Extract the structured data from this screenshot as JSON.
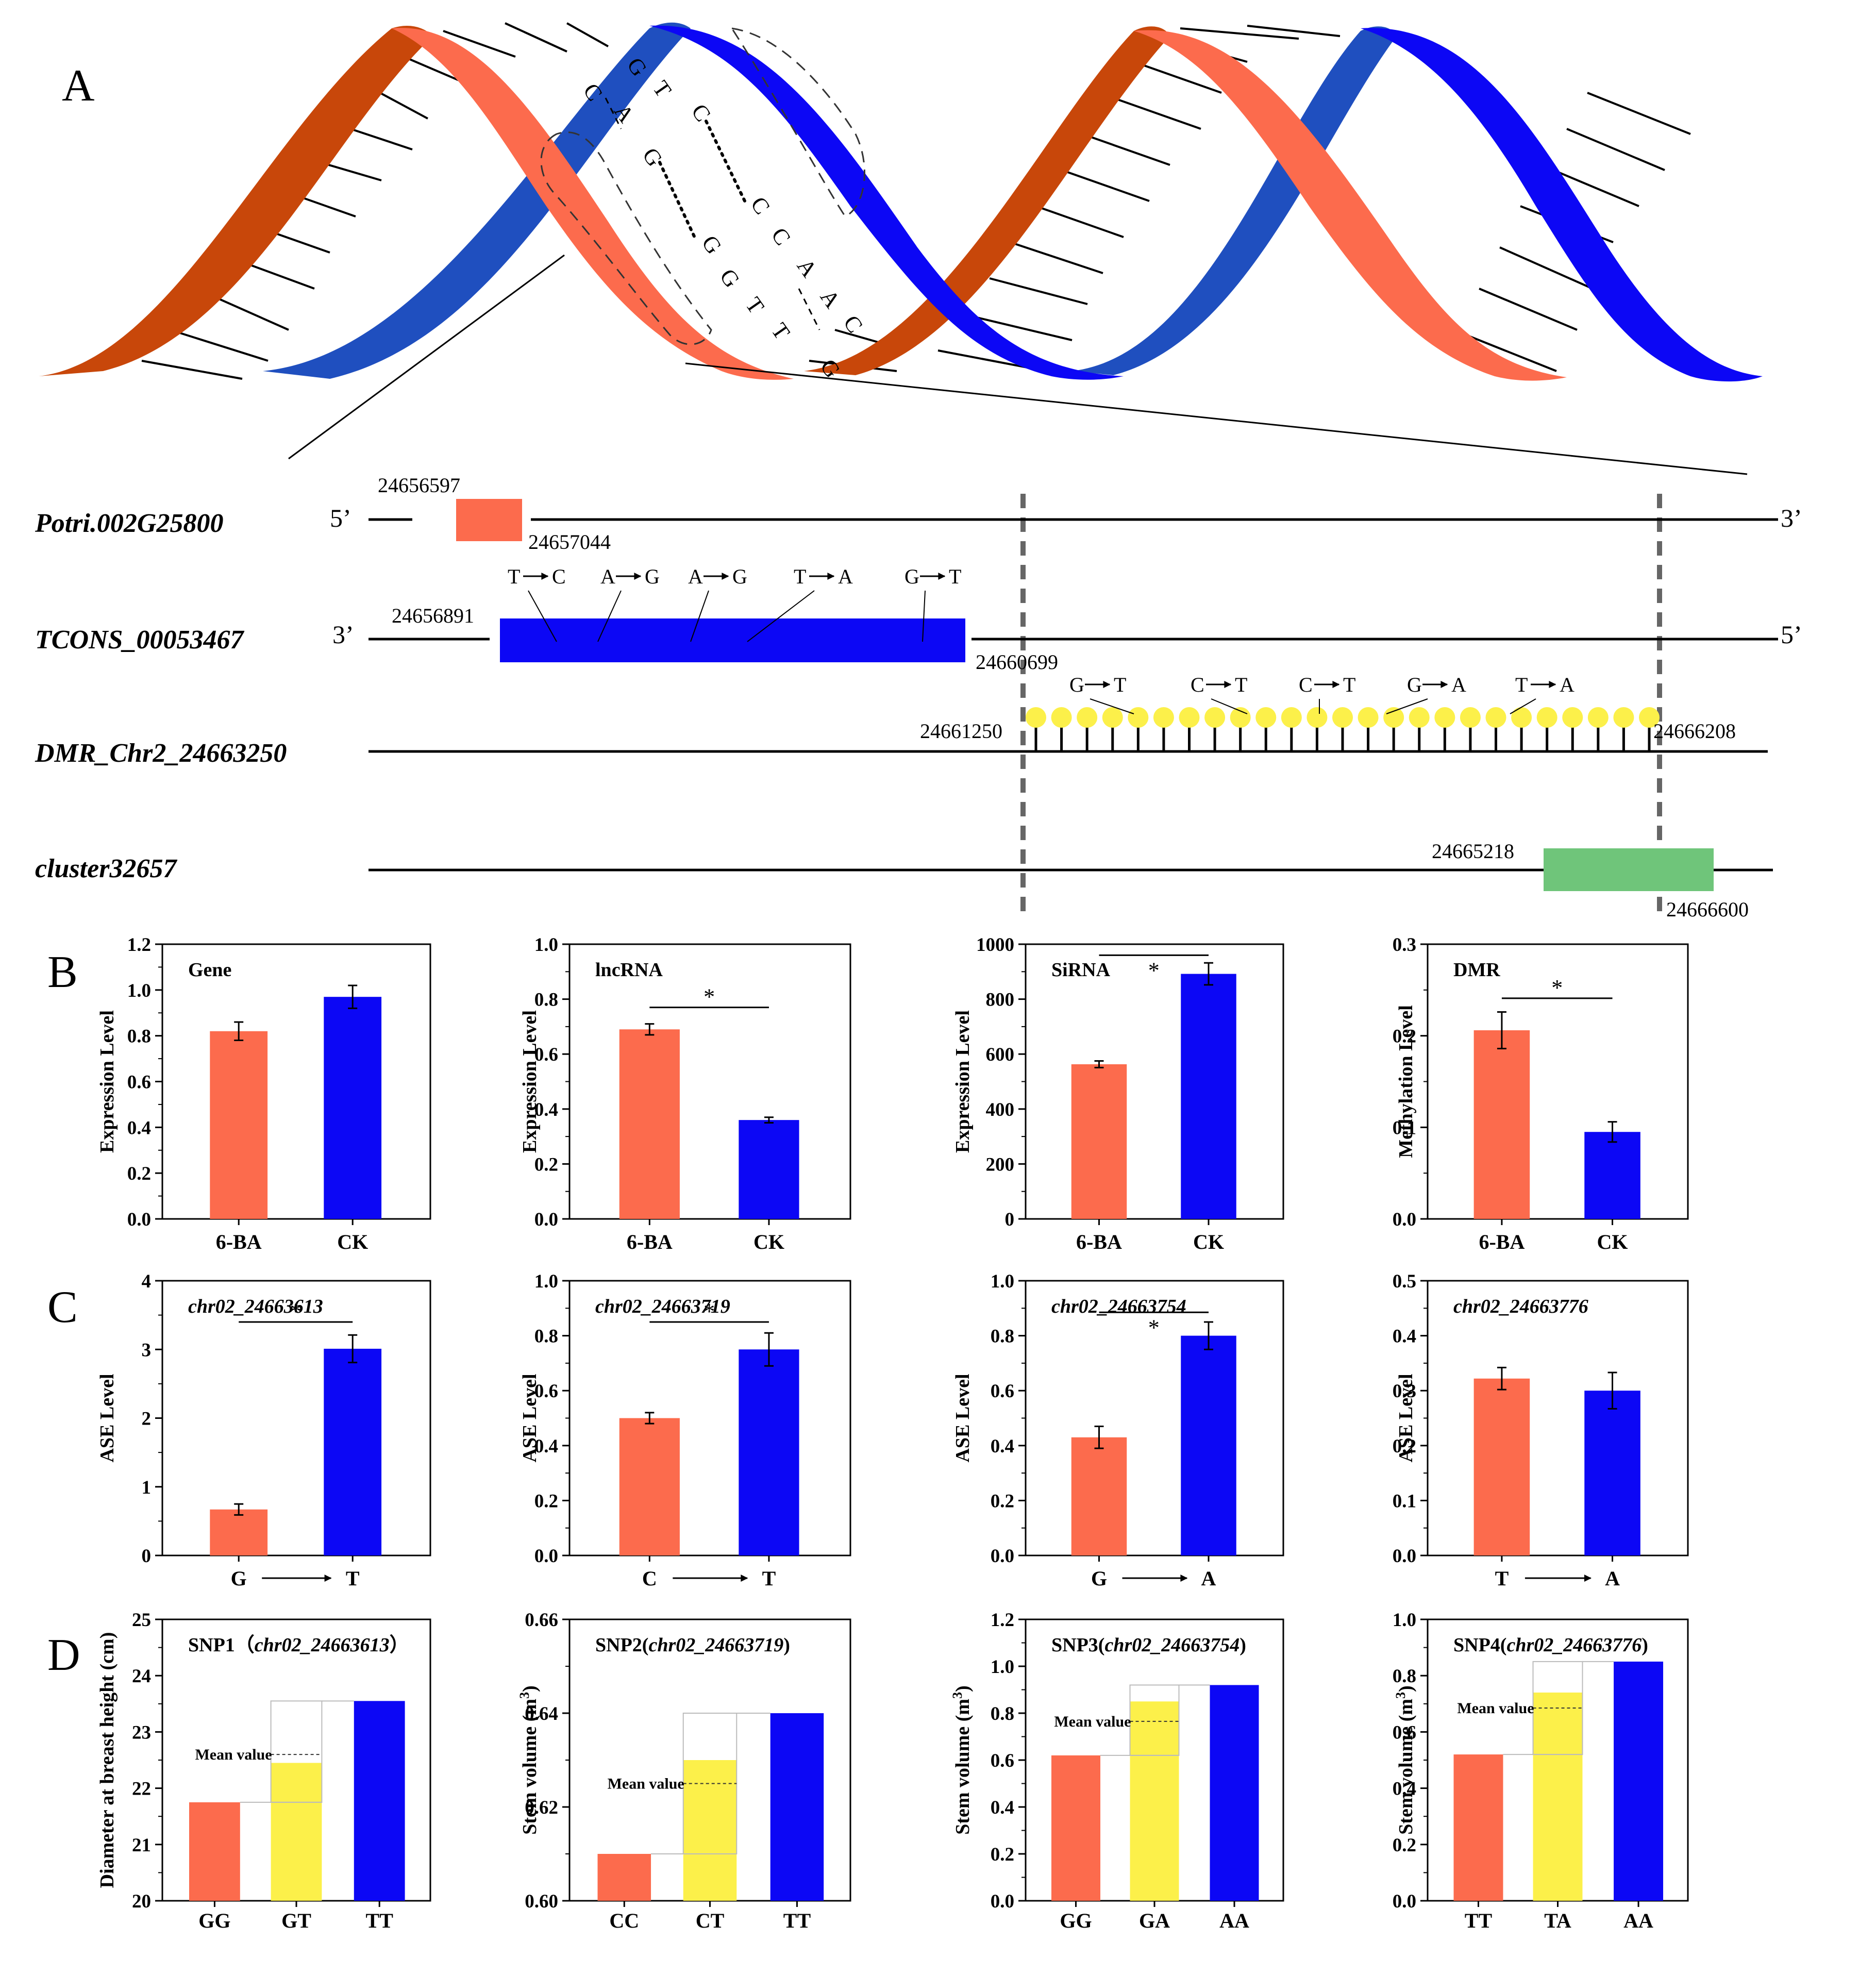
{
  "colors": {
    "salmon": "#FC6B4D",
    "blue": "#0C07F5",
    "yellow": "#FCF04A",
    "green": "#6FC57A",
    "rust": "#C8470A",
    "strandBlueDark": "#1F4FBF"
  },
  "panelA": {
    "letter": "A",
    "helix_bases": {
      "top_strand": [
        "G",
        "T",
        "C",
        "C",
        "C",
        "A",
        "A",
        "C"
      ],
      "bottom_strand": [
        "C",
        "A",
        "G",
        "G",
        "G",
        "T",
        "T",
        "G"
      ]
    },
    "tracks": [
      {
        "name": "Potri.002G25800",
        "left_end": "5’",
        "right_end": "3’",
        "start": "24656597",
        "end": "24657044"
      },
      {
        "name": "TCONS_00053467",
        "left_end": "3’",
        "right_end": "5’",
        "start": "24656891",
        "end": "24660699",
        "mutations": [
          {
            "from": "T",
            "to": "C"
          },
          {
            "from": "A",
            "to": "G"
          },
          {
            "from": "A",
            "to": "G"
          },
          {
            "from": "T",
            "to": "A"
          },
          {
            "from": "G",
            "to": "T"
          }
        ]
      },
      {
        "name": "DMR_Chr2_24663250",
        "start": "24661250",
        "end": "24666208",
        "mutations": [
          {
            "from": "G",
            "to": "T"
          },
          {
            "from": "C",
            "to": "T"
          },
          {
            "from": "C",
            "to": "T"
          },
          {
            "from": "G",
            "to": "A"
          },
          {
            "from": "T",
            "to": "A"
          }
        ]
      },
      {
        "name": "cluster32657",
        "start": "24665218",
        "end": "24666600"
      }
    ]
  },
  "rowLetters": {
    "B": "B",
    "C": "C",
    "D": "D"
  },
  "mean_label": "Mean value",
  "chart_data": [
    {
      "id": "B1",
      "type": "bar",
      "row": "B",
      "title": "Gene",
      "title_italic": false,
      "ylabel": "Expression Level",
      "categories": [
        "6-BA",
        "CK"
      ],
      "values": [
        0.82,
        0.97
      ],
      "errors": [
        0.04,
        0.05
      ],
      "ylim": [
        0,
        1.2
      ],
      "yticks": [
        "0.0",
        "0.2",
        "0.4",
        "0.6",
        "0.8",
        "1.0",
        "1.2"
      ],
      "significance": null
    },
    {
      "id": "B2",
      "type": "bar",
      "row": "B",
      "title": "lncRNA",
      "title_italic": false,
      "ylabel": "Expression Level",
      "categories": [
        "6-BA",
        "CK"
      ],
      "values": [
        0.69,
        0.36
      ],
      "errors": [
        0.02,
        0.01
      ],
      "ylim": [
        0,
        1.0
      ],
      "yticks": [
        "0.0",
        "0.2",
        "0.4",
        "0.6",
        "0.8",
        "1.0"
      ],
      "significance": {
        "label": "*",
        "y": 0.77
      }
    },
    {
      "id": "B3",
      "type": "bar",
      "row": "B",
      "title": "SiRNA",
      "title_italic": false,
      "ylabel": "Expression Level",
      "categories": [
        "6-BA",
        "CK"
      ],
      "values": [
        563,
        892
      ],
      "errors": [
        12,
        40
      ],
      "ylim": [
        0,
        1000
      ],
      "yticks": [
        "0",
        "200",
        "400",
        "600",
        "800",
        "1000"
      ],
      "significance": {
        "label": "*",
        "y": 960
      }
    },
    {
      "id": "B4",
      "type": "bar",
      "row": "B",
      "title": "DMR",
      "title_italic": false,
      "ylabel": "Methylation Level",
      "categories": [
        "6-BA",
        "CK"
      ],
      "values": [
        0.206,
        0.095
      ],
      "errors": [
        0.02,
        0.011
      ],
      "ylim": [
        0,
        0.3
      ],
      "yticks": [
        "0.0",
        "0.1",
        "0.2",
        "0.3"
      ],
      "significance": {
        "label": "*",
        "y": 0.241
      }
    },
    {
      "id": "C1",
      "type": "bar",
      "row": "C",
      "title": "chr02_24663613",
      "title_italic": true,
      "ylabel": "ASE Level",
      "categories": [
        "G",
        "T"
      ],
      "values": [
        0.67,
        3.01
      ],
      "errors": [
        0.08,
        0.2
      ],
      "ylim": [
        0,
        4
      ],
      "yticks": [
        "0",
        "1",
        "2",
        "3",
        "4"
      ],
      "significance": {
        "label": "*",
        "y": 3.4
      },
      "arrow": true
    },
    {
      "id": "C2",
      "type": "bar",
      "row": "C",
      "title": "chr02_24663719",
      "title_italic": true,
      "ylabel": "ASE Level",
      "categories": [
        "C",
        "T"
      ],
      "values": [
        0.5,
        0.75
      ],
      "errors": [
        0.02,
        0.06
      ],
      "ylim": [
        0,
        1.0
      ],
      "yticks": [
        "0.0",
        "0.2",
        "0.4",
        "0.6",
        "0.8",
        "1.0"
      ],
      "significance": {
        "label": "*",
        "y": 0.85
      },
      "arrow": true
    },
    {
      "id": "C3",
      "type": "bar",
      "row": "C",
      "title": "chr02_24663754",
      "title_italic": true,
      "ylabel": "ASE Level",
      "categories": [
        "G",
        "A"
      ],
      "values": [
        0.43,
        0.8
      ],
      "errors": [
        0.04,
        0.05
      ],
      "ylim": [
        0,
        1.0
      ],
      "yticks": [
        "0.0",
        "0.2",
        "0.4",
        "0.6",
        "0.8",
        "1.0"
      ],
      "significance": {
        "label": "*",
        "y": 0.885
      },
      "arrow": true
    },
    {
      "id": "C4",
      "type": "bar",
      "row": "C",
      "title": "chr02_24663776",
      "title_italic": true,
      "ylabel": "ASE Level",
      "categories": [
        "T",
        "A"
      ],
      "values": [
        0.322,
        0.3
      ],
      "errors": [
        0.02,
        0.033
      ],
      "ylim": [
        0,
        0.5
      ],
      "yticks": [
        "0.0",
        "0.1",
        "0.2",
        "0.3",
        "0.4",
        "0.5"
      ],
      "significance": null,
      "arrow": true
    },
    {
      "id": "D1",
      "type": "bar",
      "row": "D",
      "title_prefix": "SNP1（",
      "title_italic_part": "chr02_24663613",
      "title_suffix": "）",
      "ylabel": "Diameter at breast height (cm)",
      "categories": [
        "GG",
        "GT",
        "TT"
      ],
      "values": [
        21.75,
        22.45,
        23.55
      ],
      "mean": 22.6,
      "ylim": [
        20,
        25
      ],
      "yticks": [
        "20",
        "21",
        "22",
        "23",
        "24",
        "25"
      ]
    },
    {
      "id": "D2",
      "type": "bar",
      "row": "D",
      "title_prefix": "SNP2(",
      "title_italic_part": "chr02_24663719",
      "title_suffix": ")",
      "ylabel": "Stem volume (m³)",
      "categories": [
        "CC",
        "CT",
        "TT"
      ],
      "values": [
        0.61,
        0.63,
        0.64
      ],
      "mean": 0.625,
      "ylim": [
        0.6,
        0.66
      ],
      "yticks": [
        "0.60",
        "0.62",
        "0.64",
        "0.66"
      ]
    },
    {
      "id": "D3",
      "type": "bar",
      "row": "D",
      "title_prefix": "SNP3(",
      "title_italic_part": "chr02_24663754",
      "title_suffix": ")",
      "ylabel": "Stem volume (m³)",
      "categories": [
        "GG",
        "GA",
        "AA"
      ],
      "values": [
        0.62,
        0.85,
        0.92
      ],
      "mean": 0.765,
      "ylim": [
        0,
        1.2
      ],
      "yticks": [
        "0.0",
        "0.2",
        "0.4",
        "0.6",
        "0.8",
        "1.0",
        "1.2"
      ]
    },
    {
      "id": "D4",
      "type": "bar",
      "row": "D",
      "title_prefix": "SNP4(",
      "title_italic_part": "chr02_24663776",
      "title_suffix": ")",
      "ylabel": "Stem volume (m³)",
      "categories": [
        "TT",
        "TA",
        "AA"
      ],
      "values": [
        0.52,
        0.74,
        0.85
      ],
      "mean": 0.685,
      "ylim": [
        0,
        1.0
      ],
      "yticks": [
        "0.0",
        "0.2",
        "0.4",
        "0.6",
        "0.8",
        "1.0"
      ]
    }
  ]
}
